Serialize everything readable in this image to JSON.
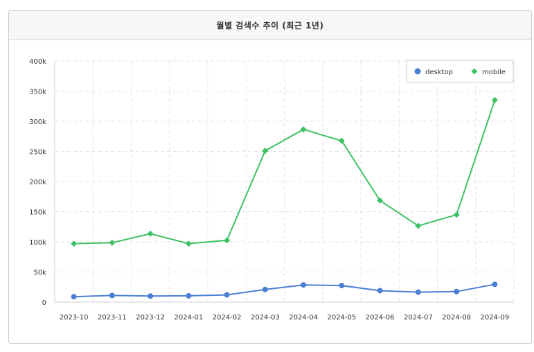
{
  "panel": {
    "title": "월별 검색수 추이 (최근 1년)"
  },
  "chart_data": {
    "type": "line",
    "title": "월별 검색수 추이 (최근 1년)",
    "categories": [
      "2023-10",
      "2023-11",
      "2023-12",
      "2024-01",
      "2024-02",
      "2024-03",
      "2024-04",
      "2024-05",
      "2024-06",
      "2024-07",
      "2024-08",
      "2024-09"
    ],
    "y_ticks": [
      "0",
      "50k",
      "100k",
      "150k",
      "200k",
      "250k",
      "300k",
      "350k",
      "400k"
    ],
    "ylim": [
      0,
      400000
    ],
    "grid": true,
    "legend_position": "top-right",
    "series": [
      {
        "name": "desktop",
        "color": "#4a7fd4",
        "marker": "circle",
        "values": [
          9000,
          11000,
          10000,
          10500,
          12000,
          21000,
          28500,
          27500,
          19000,
          16500,
          17500,
          29500
        ]
      },
      {
        "name": "mobile",
        "color": "#3fc164",
        "marker": "diamond",
        "values": [
          97000,
          98500,
          113500,
          97000,
          102500,
          251000,
          286500,
          267500,
          168500,
          126500,
          145000,
          335000
        ]
      }
    ]
  }
}
